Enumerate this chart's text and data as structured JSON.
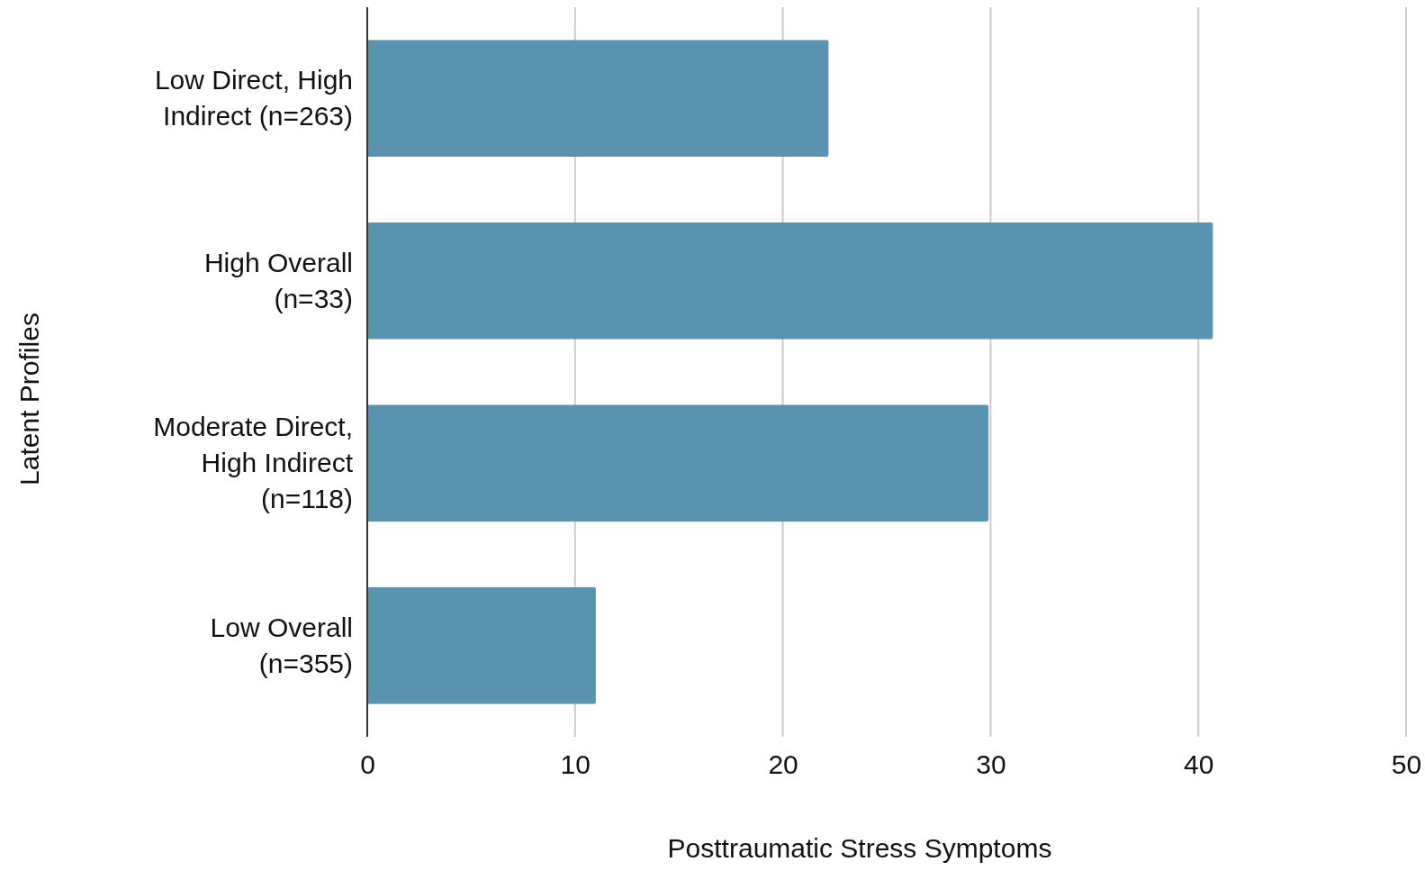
{
  "chart_data": {
    "type": "bar",
    "orientation": "horizontal",
    "xlabel": "Posttraumatic Stress Symptoms",
    "ylabel": "Latent Profiles",
    "categories": [
      "Low Direct, High Indirect (n=263)",
      "High Overall (n=33)",
      "Moderate Direct, High Indirect (n=118)",
      "Low Overall (n=355)"
    ],
    "values": [
      22.2,
      40.7,
      29.9,
      11.0
    ],
    "color": "#5a93b0",
    "xlim": [
      0,
      50
    ],
    "xticks": [
      0,
      10,
      20,
      30,
      40,
      50
    ],
    "grid": "x"
  }
}
